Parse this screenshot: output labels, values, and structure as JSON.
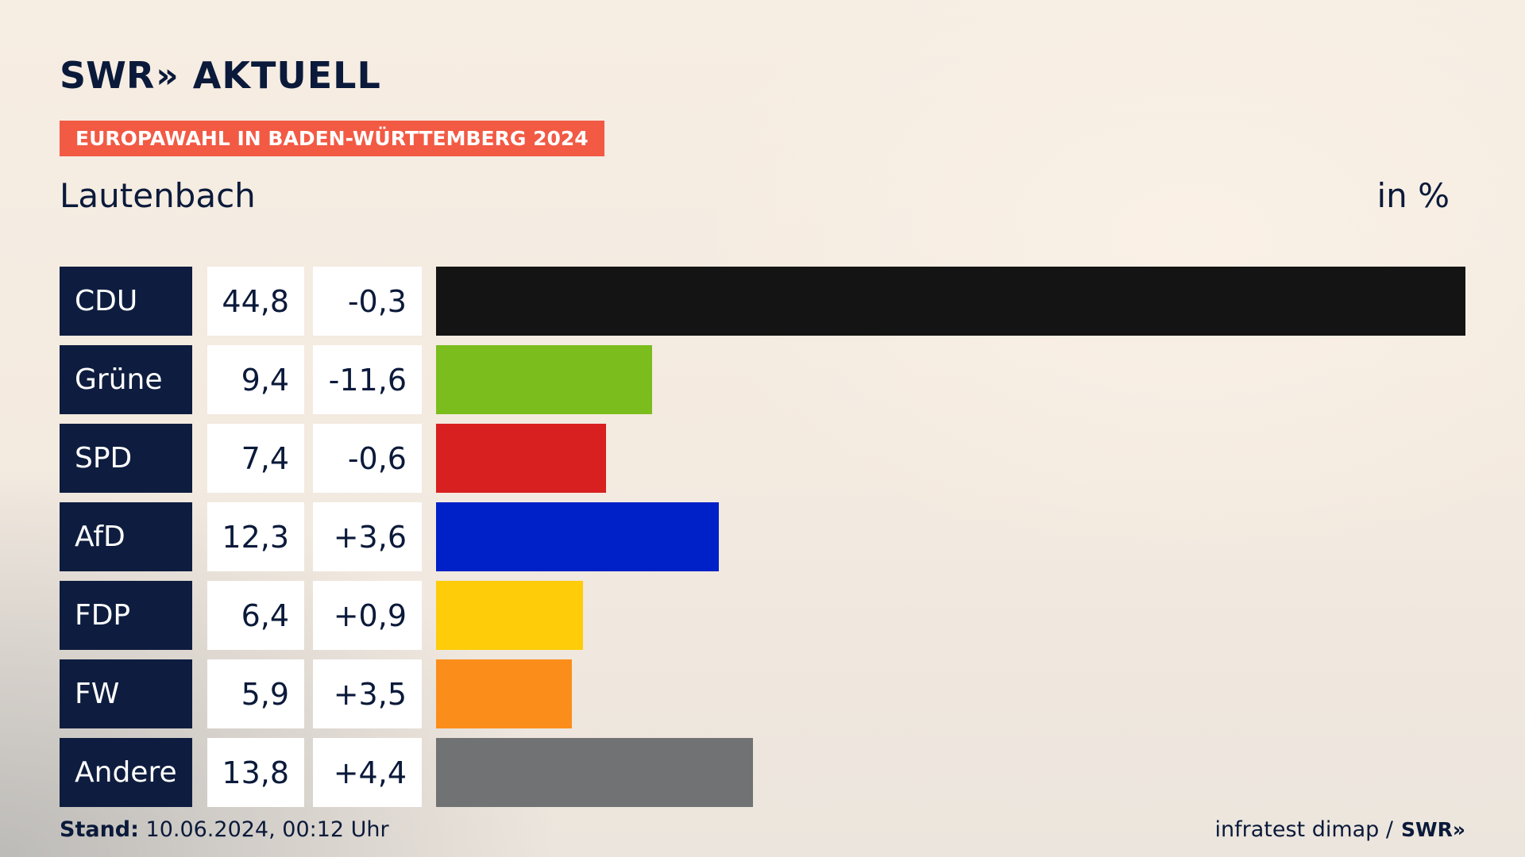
{
  "brand": {
    "swr": "SWR",
    "chevrons": "»",
    "aktuell": "AKTUELL"
  },
  "badge": "EUROPAWAHL IN BADEN-WÜRTTEMBERG 2024",
  "place": "Lautenbach",
  "unit": "in %",
  "footer": {
    "stand_label": "Stand:",
    "stand_value": "10.06.2024, 00:12 Uhr",
    "source": "infratest dimap /",
    "source_logo": "SWR»"
  },
  "colors": {
    "badge": "#f25a44",
    "party_box": "#0e1d3f"
  },
  "chart_data": {
    "type": "bar",
    "orientation": "horizontal",
    "title": "Lautenbach",
    "unit": "in %",
    "categories": [
      "CDU",
      "Grüne",
      "SPD",
      "AfD",
      "FDP",
      "FW",
      "Andere"
    ],
    "values": [
      44.8,
      9.4,
      7.4,
      12.3,
      6.4,
      5.9,
      13.8
    ],
    "value_labels": [
      "44,8",
      "9,4",
      "7,4",
      "12,3",
      "6,4",
      "5,9",
      "13,8"
    ],
    "change_labels": [
      "-0,3",
      "-11,6",
      "-0,6",
      "+3,6",
      "+0,9",
      "+3,5",
      "+4,4"
    ],
    "changes": [
      -0.3,
      -11.6,
      -0.6,
      3.6,
      0.9,
      3.5,
      4.4
    ],
    "bar_colors": [
      "#141414",
      "#7bbd1d",
      "#d7201f",
      "#0020c8",
      "#fecc08",
      "#fb8e1a",
      "#717273"
    ],
    "xlim": [
      0,
      44.8
    ],
    "grid": false,
    "legend": "none"
  }
}
